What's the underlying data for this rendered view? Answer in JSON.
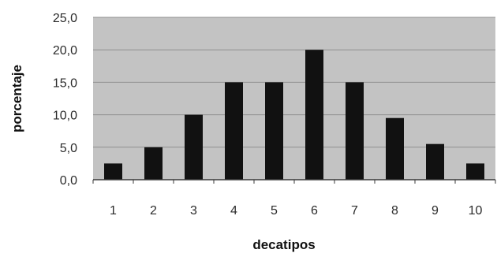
{
  "chart_data": {
    "type": "bar",
    "title": "",
    "xlabel": "decatipos",
    "ylabel": "porcentaje",
    "categories": [
      "1",
      "2",
      "3",
      "4",
      "5",
      "6",
      "7",
      "8",
      "9",
      "10"
    ],
    "values": [
      2.5,
      5.0,
      10.0,
      15.0,
      15.0,
      20.0,
      15.0,
      9.5,
      5.5,
      2.5
    ],
    "y_tick_labels": [
      "0,0",
      "5,0",
      "10,0",
      "15,0",
      "20,0",
      "25,0"
    ],
    "ylim": [
      0,
      25
    ],
    "grid": true,
    "legend": false,
    "colors": {
      "bar": "#111111",
      "plot_background": "#c3c3c3",
      "gridline": "#8f8f8f",
      "axis": "#3a3a3a"
    }
  }
}
